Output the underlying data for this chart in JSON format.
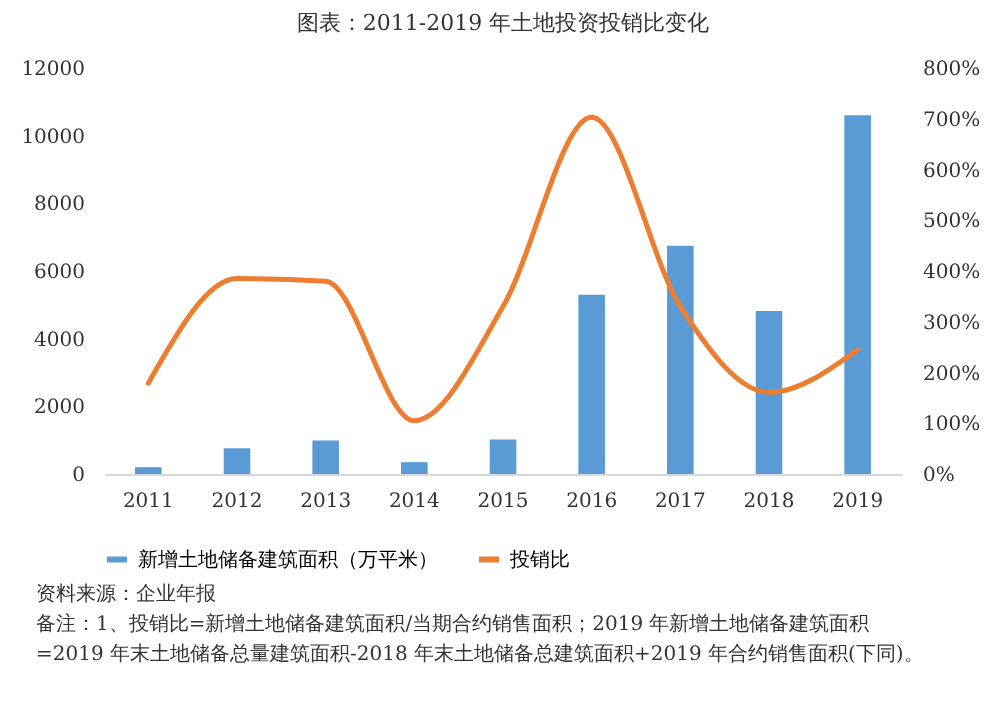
{
  "chart_data": {
    "type": "bar",
    "title": "图表：2011-2019 年土地投资投销比变化",
    "categories": [
      "2011",
      "2012",
      "2013",
      "2014",
      "2015",
      "2016",
      "2017",
      "2018",
      "2019"
    ],
    "series": [
      {
        "name": "新增土地储备建筑面积（万平米）",
        "color": "#5b9bd5",
        "values": [
          200,
          760,
          990,
          350,
          1020,
          5300,
          6750,
          4820,
          10600
        ]
      },
      {
        "name": "投销比",
        "color": "#ed7d31",
        "type": "line",
        "axis": "y2",
        "values": [
          179,
          385,
          380,
          105,
          330,
          703,
          330,
          161,
          245
        ]
      }
    ],
    "ylim": [
      0,
      12000
    ],
    "yticks": [
      0,
      2000,
      4000,
      6000,
      8000,
      10000,
      12000
    ],
    "y2lim": [
      0,
      800
    ],
    "y2ticks": [
      {
        "value": 0,
        "label": "0%"
      },
      {
        "value": 100,
        "label": "100%"
      },
      {
        "value": 200,
        "label": "200%"
      },
      {
        "value": 300,
        "label": "300%"
      },
      {
        "value": 400,
        "label": "400%"
      },
      {
        "value": 500,
        "label": "500%"
      },
      {
        "value": 600,
        "label": "600%"
      },
      {
        "value": 700,
        "label": "700%"
      },
      {
        "value": 800,
        "label": "800%"
      }
    ],
    "legend": "bottom",
    "annotations": [
      "资料来源：企业年报",
      "备注：1、投销比=新增土地储备建筑面积/当期合约销售面积；2019 年新增土地储备建筑面积",
      "=2019 年末土地储备总量建筑面积-2018 年末土地储备总建筑面积+2019 年合约销售面积(下同)。"
    ]
  }
}
